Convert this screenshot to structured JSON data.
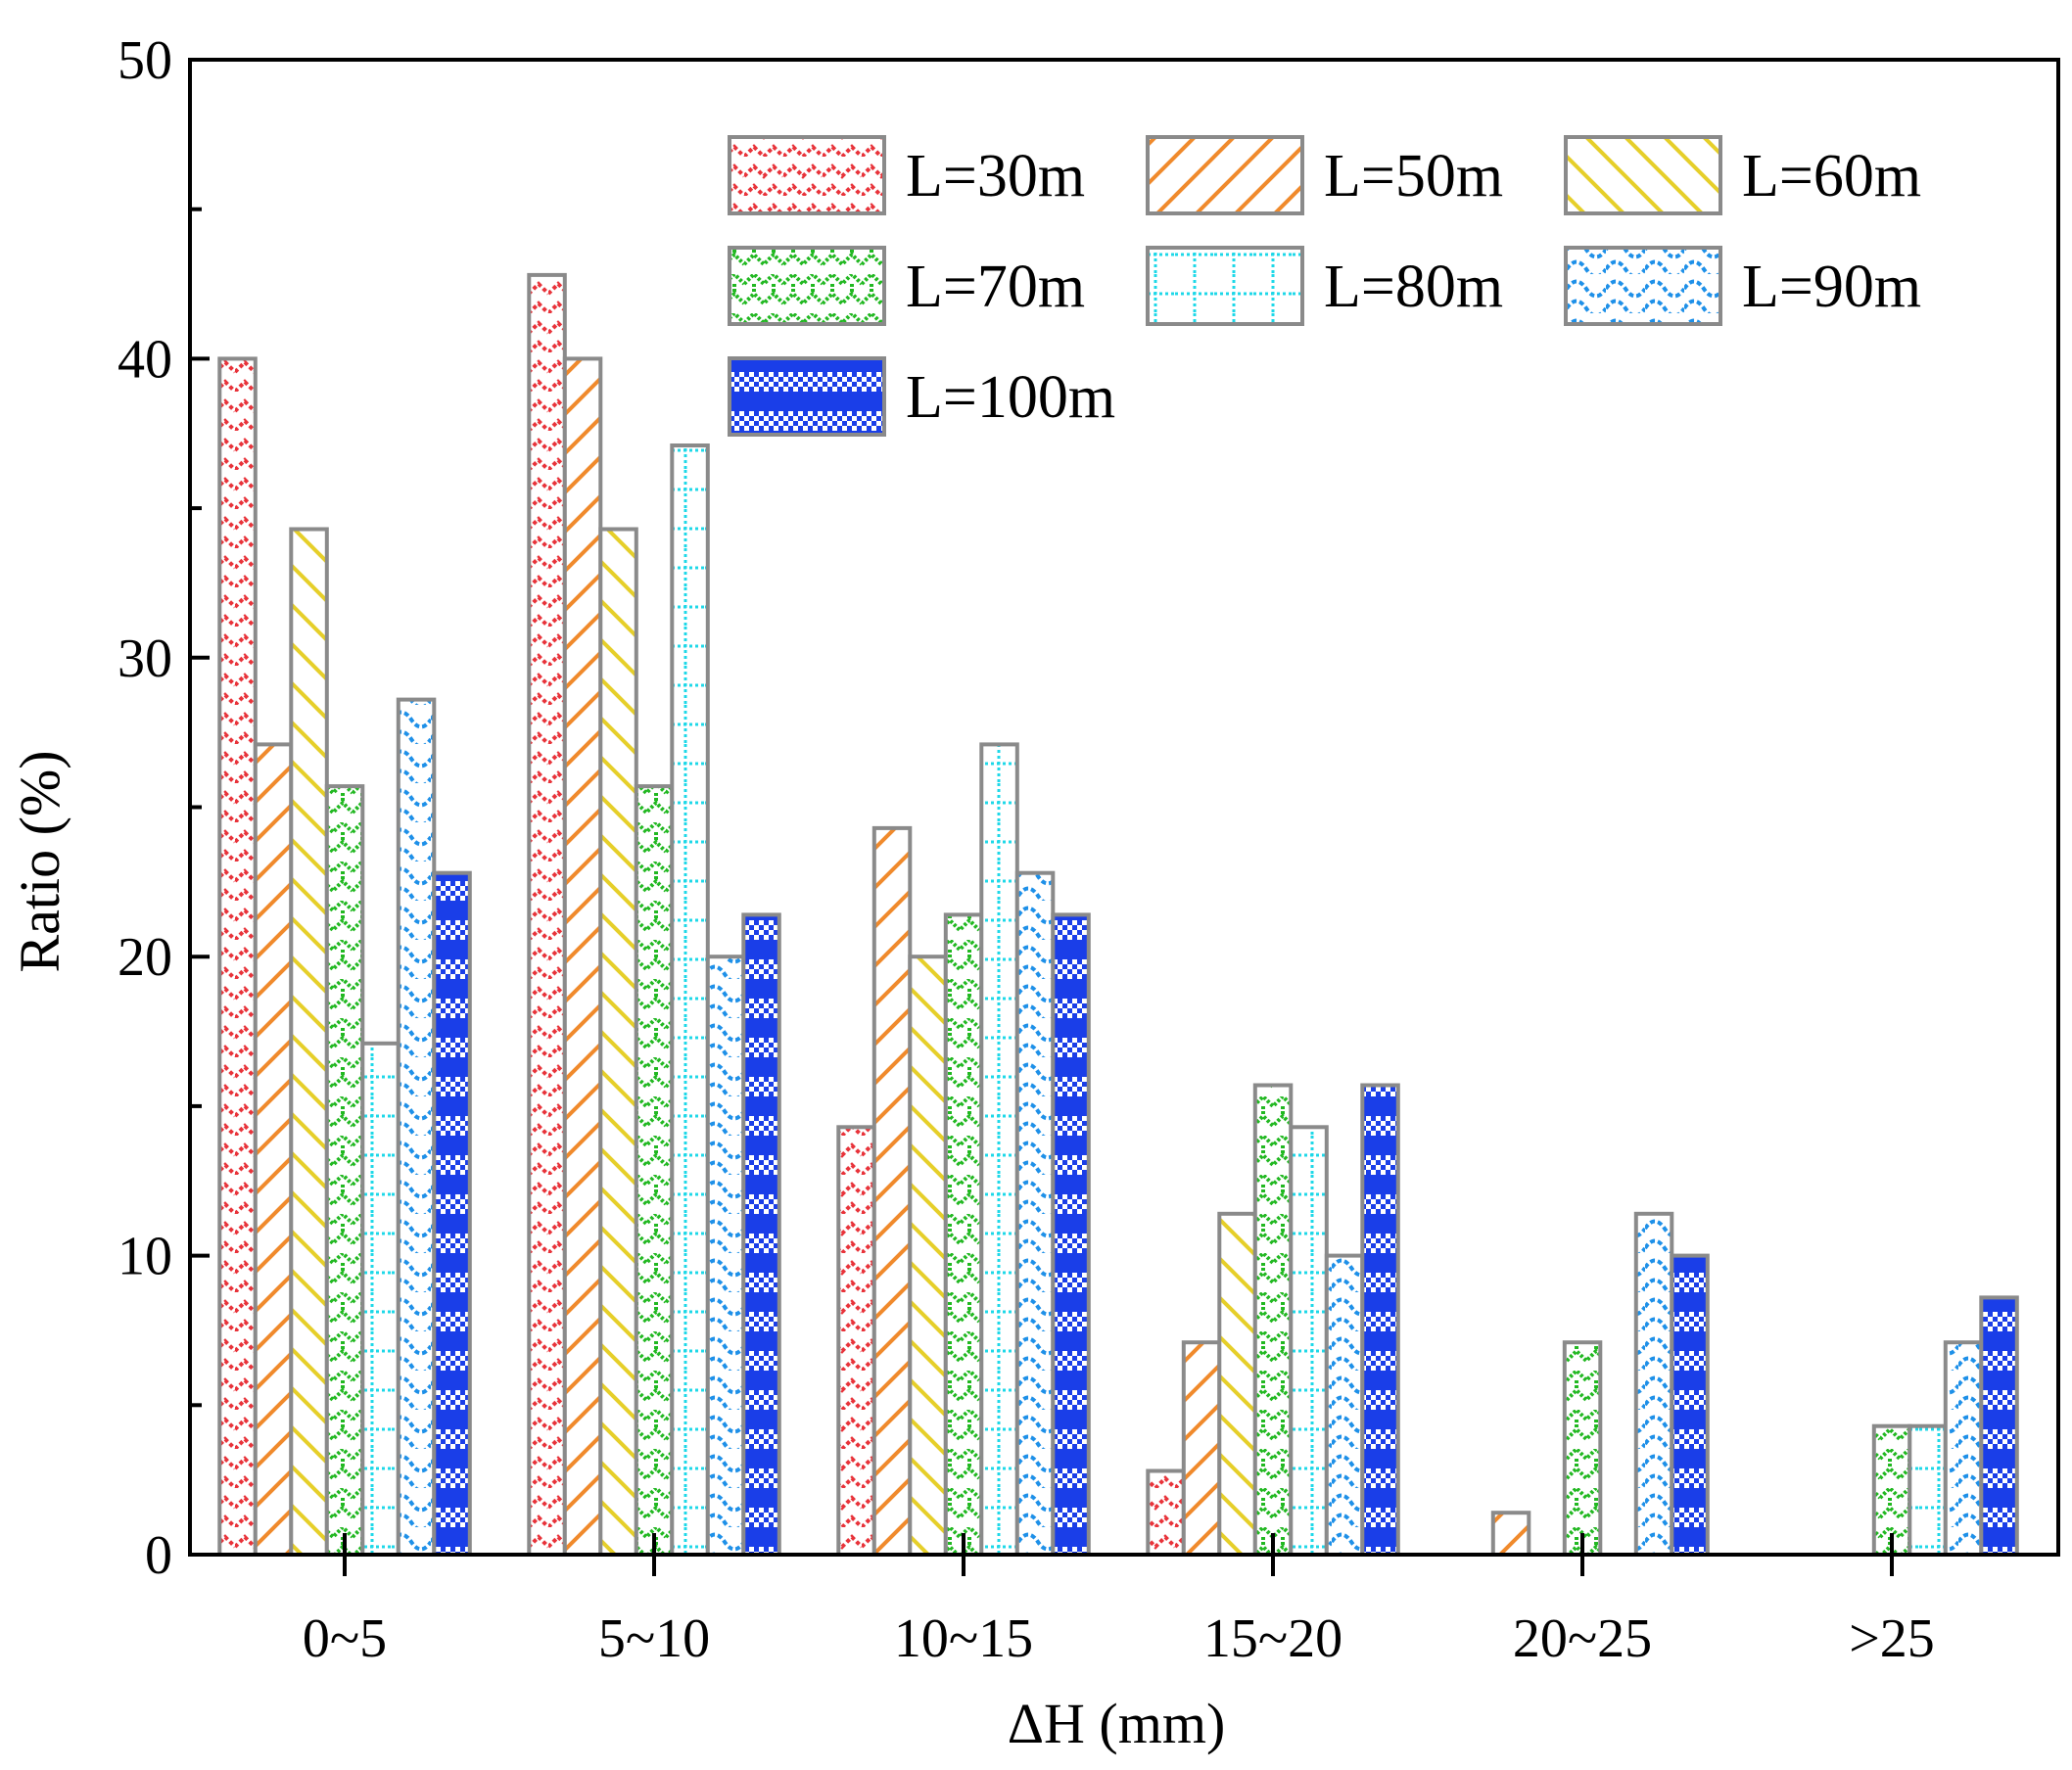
{
  "chart_data": {
    "type": "bar",
    "title": "",
    "xlabel": "ΔH (mm)",
    "ylabel": "Ratio (%)",
    "ylim": [
      0,
      50
    ],
    "yticks": [
      "0",
      "10",
      "20",
      "30",
      "40",
      "50"
    ],
    "grid": false,
    "legend_position": "top-right",
    "categories": [
      "0~5",
      "5~10",
      "10~15",
      "15~20",
      "20~25",
      ">25"
    ],
    "series": [
      {
        "name": "L=30m",
        "color": "#e8333a",
        "pattern": "zigzag",
        "values": [
          40,
          42.8,
          14.3,
          2.8,
          0,
          0
        ]
      },
      {
        "name": "L=50m",
        "color": "#f08a2c",
        "pattern": "diag-up",
        "values": [
          27.1,
          40,
          24.3,
          7.1,
          1.4,
          0
        ]
      },
      {
        "name": "L=60m",
        "color": "#e6cf2a",
        "pattern": "diag-down",
        "values": [
          34.3,
          34.3,
          20,
          11.4,
          0,
          0
        ]
      },
      {
        "name": "L=70m",
        "color": "#22b822",
        "pattern": "weave",
        "values": [
          25.7,
          25.7,
          21.4,
          15.7,
          7.1,
          4.3
        ]
      },
      {
        "name": "L=80m",
        "color": "#1ed8e8",
        "pattern": "dotted-grid",
        "values": [
          17.1,
          37.1,
          27.1,
          14.3,
          0,
          4.3
        ]
      },
      {
        "name": "L=90m",
        "color": "#1e90e8",
        "pattern": "scallop",
        "values": [
          28.6,
          20,
          22.8,
          10,
          11.4,
          7.1
        ]
      },
      {
        "name": "L=100m",
        "color": "#1a3ee8",
        "pattern": "checker",
        "values": [
          22.8,
          21.4,
          21.4,
          15.7,
          10,
          8.6
        ]
      }
    ]
  }
}
